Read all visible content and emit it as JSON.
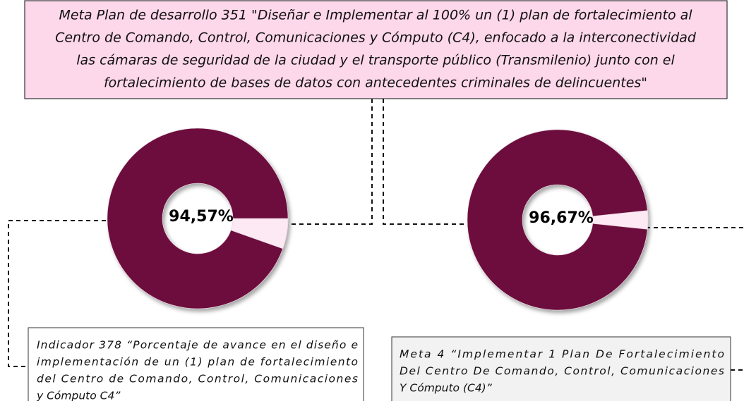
{
  "header": {
    "lines": [
      "Meta Plan de desarrollo  351 \"Diseñar e Implementar   al 100% un (1) plan de fortalecimiento al",
      "Centro  de Comando, Control, Comunicaciones   y  Cómputo (C4),  enfocado a la interconectividad",
      "las cámaras de seguridad de la ciudad y el transporte público (Transmilenio)   junto con el",
      "fortalecimiento  de  bases de datos con antecedentes criminales de delincuentes\""
    ]
  },
  "chart_data": [
    {
      "type": "pie",
      "values": [
        94.57,
        5.43
      ],
      "value_labels": [
        "94,57%",
        null
      ],
      "colors": [
        "#6c0f3e",
        "#fde9f3"
      ]
    },
    {
      "type": "pie",
      "values": [
        96.67,
        3.33
      ],
      "value_labels": [
        "96,67%",
        null
      ],
      "colors": [
        "#6c0f3e",
        "#fde9f3"
      ]
    }
  ],
  "boxes": [
    {
      "lines": [
        "Indicador 378 “Porcentaje de avance en el diseño e",
        "implementación de un (1) plan de fortalecimiento",
        "del Centro de Comando, Control, Comunicaciones",
        "y Cómputo C4”"
      ]
    },
    {
      "lines": [
        "Meta 4 “Implementar 1 Plan De Fortalecimiento",
        "Del Centro De Comando, Control, Comunicaciones",
        "Y Cómputo (C4)”"
      ]
    }
  ]
}
